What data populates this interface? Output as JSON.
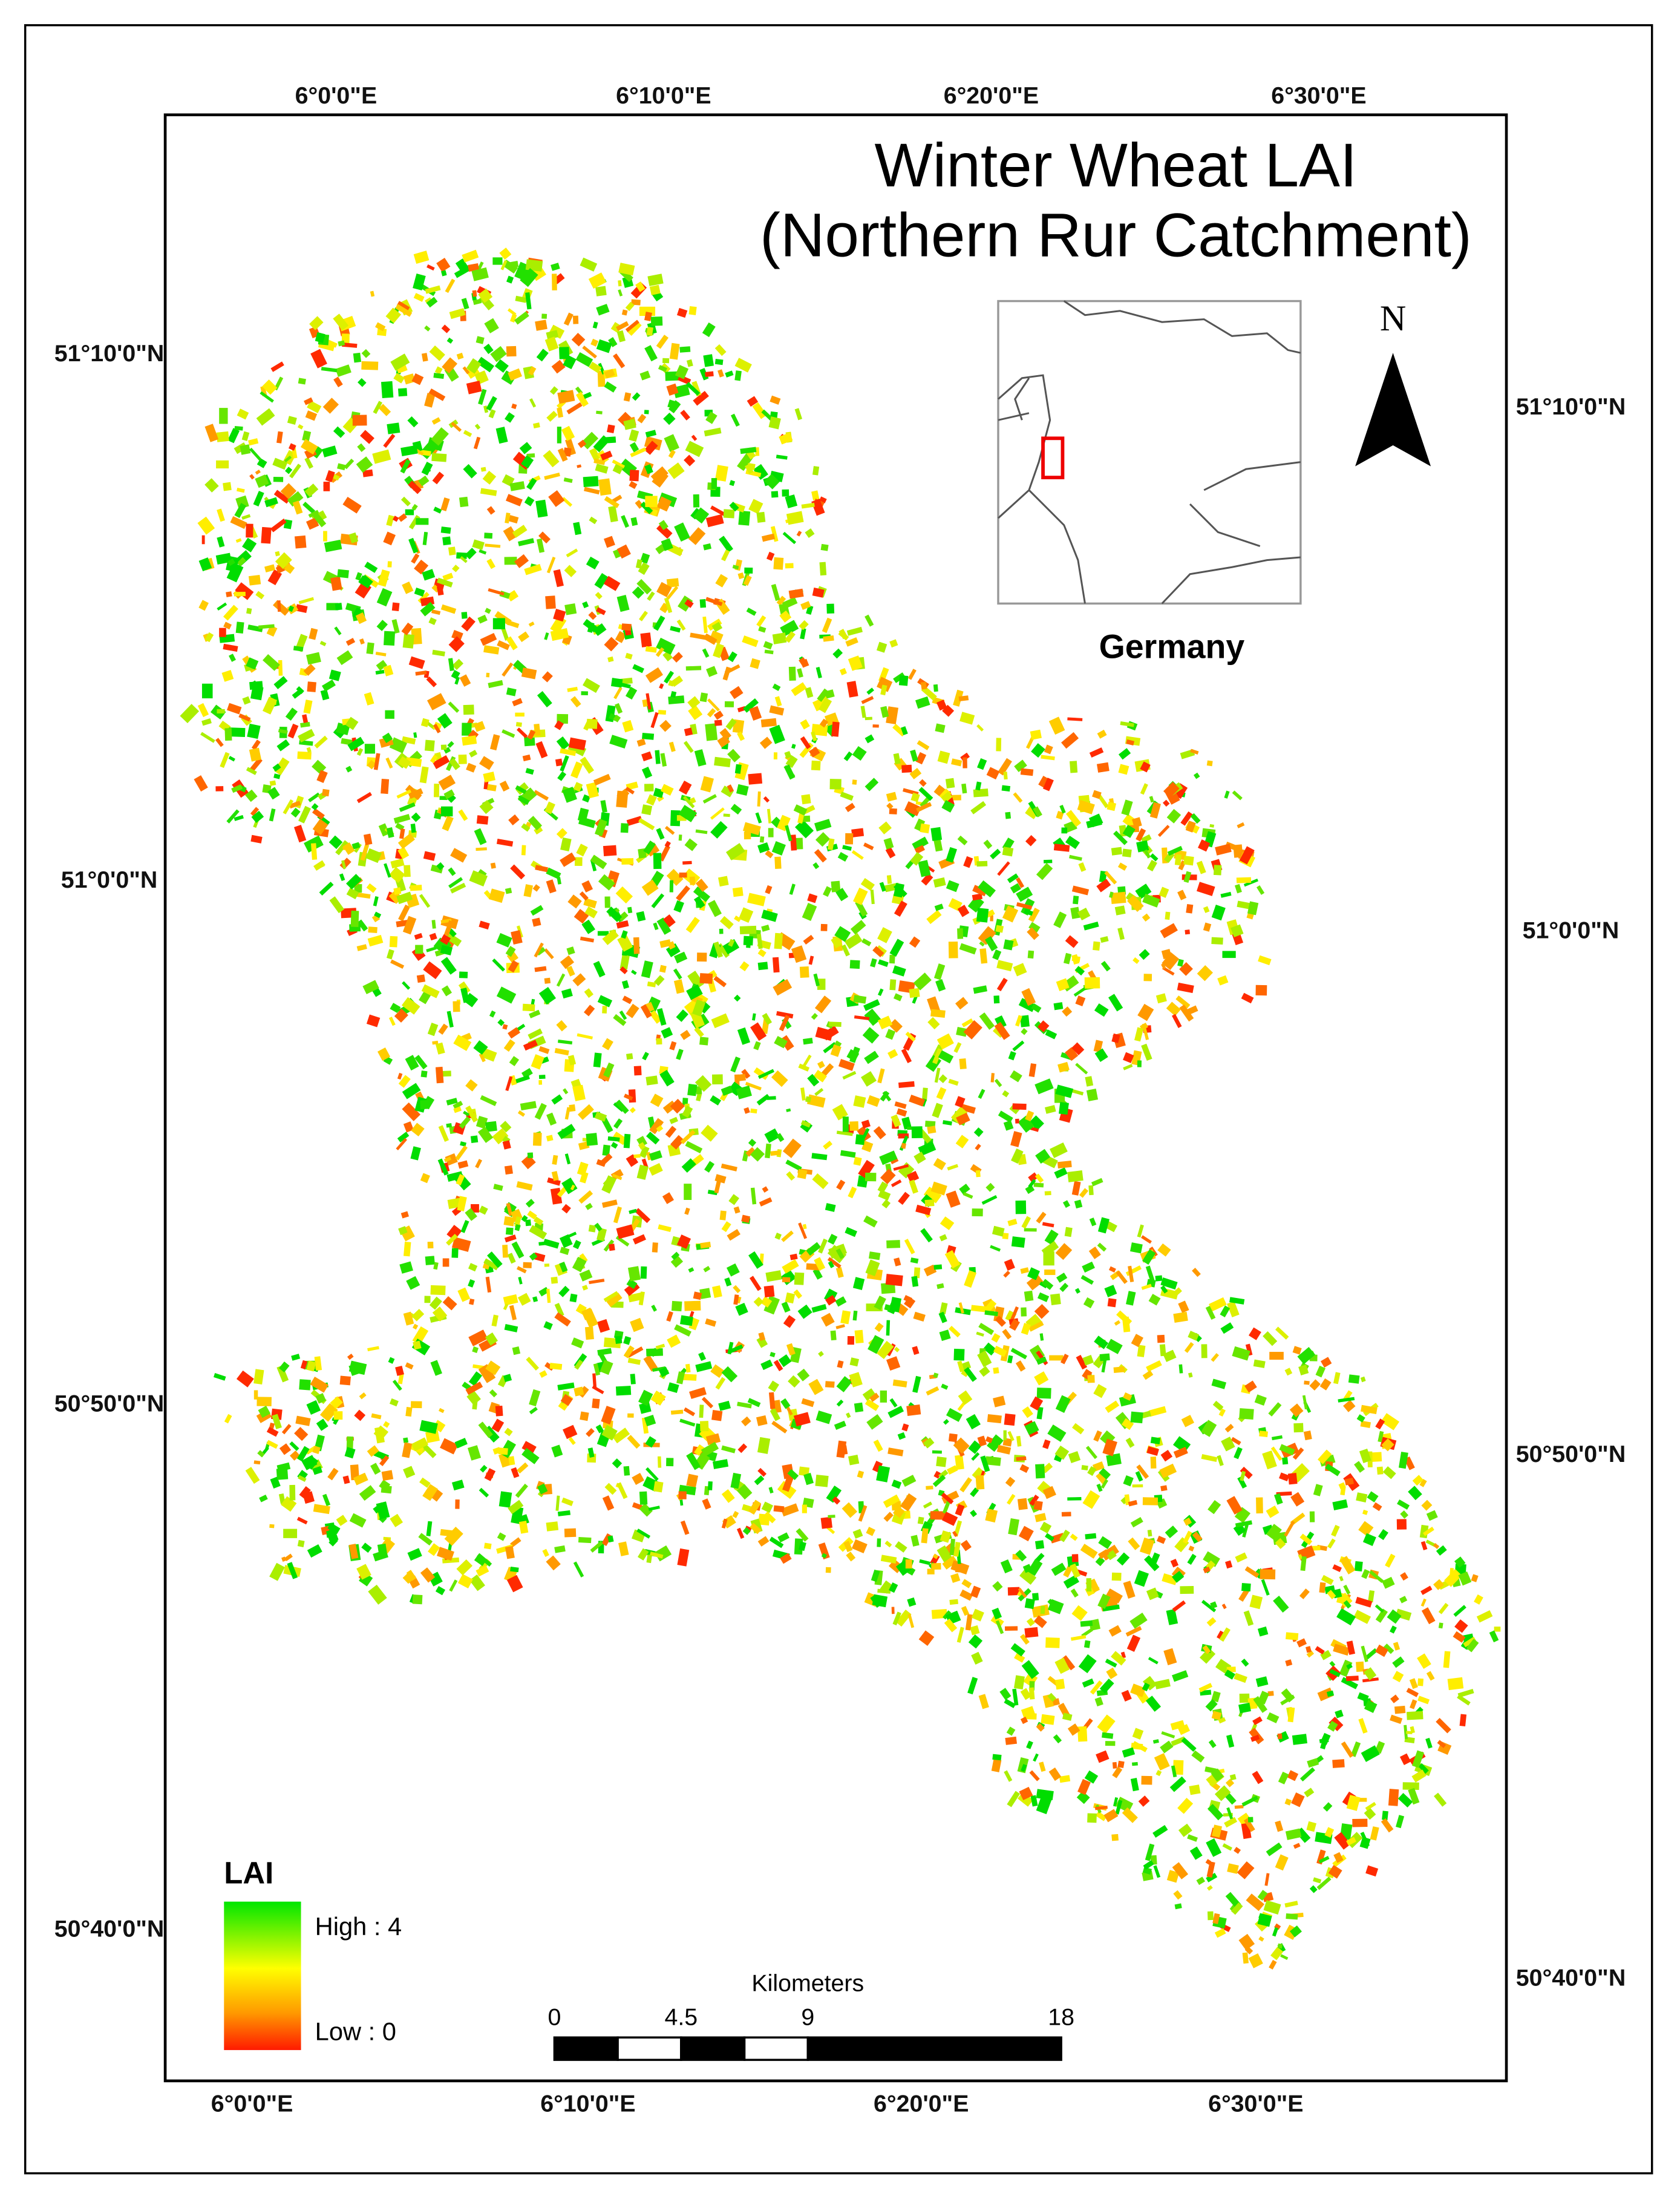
{
  "title": [
    "Winter Wheat LAI",
    "(Northern Rur Catchment)"
  ],
  "graticule": {
    "top": [
      "6°0'0\"E",
      "6°10'0\"E",
      "6°20'0\"E",
      "6°30'0\"E"
    ],
    "bottom": [
      "6°0'0\"E",
      "6°10'0\"E",
      "6°20'0\"E",
      "6°30'0\"E"
    ],
    "left": [
      "51°10'0\"N",
      "51°0'0\"N",
      "50°50'0\"N",
      "50°40'0\"N"
    ],
    "right": [
      "51°10'0\"N",
      "51°0'0\"N",
      "50°50'0\"N",
      "50°40'0\"N"
    ]
  },
  "inset": {
    "label": "Germany"
  },
  "north_arrow": "N",
  "legend": {
    "title": "LAI",
    "high": "High : 4",
    "low": "Low : 0"
  },
  "scale_bar": {
    "unit": "Kilometers",
    "ticks": [
      0,
      4.5,
      9,
      18
    ]
  }
}
